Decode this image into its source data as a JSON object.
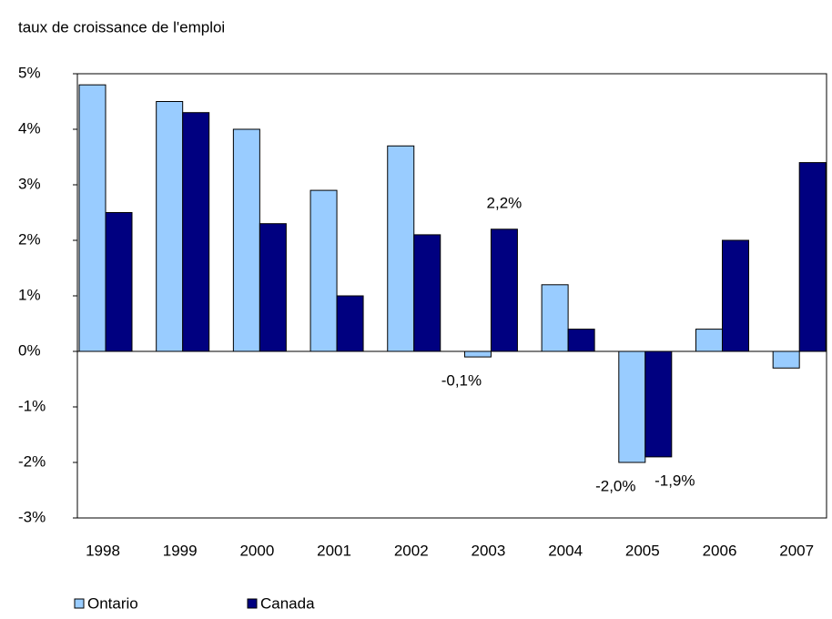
{
  "chart_data": {
    "type": "bar",
    "title": "taux de croissance de l'emploi",
    "categories": [
      "1998",
      "1999",
      "2000",
      "2001",
      "2002",
      "2003",
      "2004",
      "2005",
      "2006",
      "2007"
    ],
    "series": [
      {
        "name": "Ontario",
        "color": "#99ccff",
        "values": [
          4.8,
          4.5,
          4.0,
          2.9,
          3.7,
          -0.1,
          1.2,
          -2.0,
          0.4,
          -0.3
        ],
        "value_labels": [
          null,
          null,
          null,
          null,
          null,
          "-0,1%",
          null,
          "-2,0%",
          null,
          null
        ]
      },
      {
        "name": "Canada",
        "color": "#000080",
        "values": [
          2.5,
          4.3,
          2.3,
          1.0,
          2.1,
          2.2,
          0.4,
          -1.9,
          2.0,
          3.4
        ],
        "value_labels": [
          null,
          null,
          null,
          null,
          null,
          "2,2%",
          null,
          "-1,9%",
          null,
          null
        ]
      }
    ],
    "ylim": [
      -3,
      5
    ],
    "yticks": [
      {
        "value": -3,
        "label": "-3%"
      },
      {
        "value": -2,
        "label": "-2%"
      },
      {
        "value": -1,
        "label": "-1%"
      },
      {
        "value": 0,
        "label": "0%"
      },
      {
        "value": 1,
        "label": "1%"
      },
      {
        "value": 2,
        "label": "2%"
      },
      {
        "value": 3,
        "label": "3%"
      },
      {
        "value": 4,
        "label": "4%"
      },
      {
        "value": 5,
        "label": "5%"
      }
    ],
    "grid": false,
    "legend": "bottom"
  }
}
